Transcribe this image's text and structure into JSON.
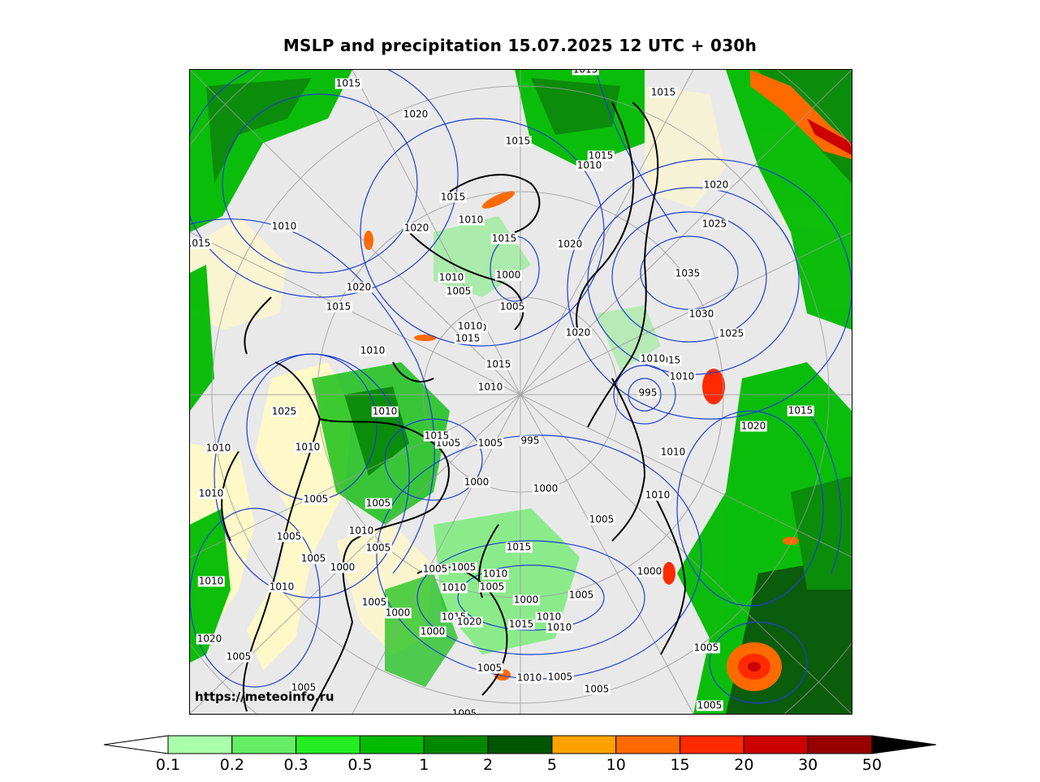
{
  "title": "MSLP and precipitation 15.07.2025 12 UTC + 030h",
  "credit": "https://meteoinfo.ru",
  "legend": {
    "ticks": [
      "0.1",
      "0.2",
      "0.3",
      "0.5",
      "1",
      "2",
      "5",
      "10",
      "15",
      "20",
      "30",
      "50"
    ],
    "colors": [
      "#aaffaa",
      "#66ee66",
      "#22ee22",
      "#00bb00",
      "#008800",
      "#005500",
      "#ffa200",
      "#ff6a00",
      "#ff2a00",
      "#cc0000",
      "#990000"
    ],
    "under_color": "#ffffff",
    "over_color": "#000000"
  },
  "map_colors": {
    "land_dry": "#fff8c8",
    "no_precip": "#e9e9e9",
    "isobar": "#1f3fd0",
    "coast": "#000000",
    "graticule": "#9a9a9a"
  },
  "isobar_labels": [
    "1015",
    "1015",
    "1015",
    "1020",
    "1015",
    "1015",
    "1010",
    "1020",
    "1015",
    "1010",
    "1025",
    "1015",
    "1020",
    "1020",
    "1015",
    "1010",
    "1000",
    "1035",
    "1005",
    "1010",
    "1030",
    "1005",
    "1010",
    "1025",
    "1015",
    "1015",
    "1010",
    "1020",
    "1020",
    "1010",
    "1010",
    "1015",
    "1010",
    "1015",
    "1010",
    "995",
    "1010",
    "1020",
    "1015",
    "1025",
    "1010",
    "1005",
    "1010",
    "1015",
    "995",
    "1005",
    "1010",
    "1000",
    "1000",
    "1010",
    "1005",
    "1005",
    "1005",
    "1010",
    "1005",
    "1010",
    "1015",
    "1005",
    "1010",
    "1005",
    "1010",
    "1000",
    "1000",
    "1010",
    "1010",
    "1005",
    "1005",
    "1005",
    "1000",
    "1000",
    "1005",
    "1000",
    "1020",
    "1015",
    "1015",
    "1010",
    "1010",
    "1005",
    "1005",
    "1010",
    "1005",
    "1005",
    "1005",
    "1020",
    "1005",
    "1005",
    "1005",
    "1005"
  ]
}
